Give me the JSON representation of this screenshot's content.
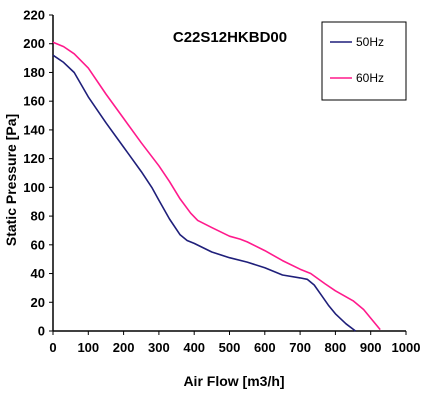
{
  "chart_data": {
    "type": "line",
    "title": "C22S12HKBD00",
    "xlabel": "Air Flow [m3/h]",
    "ylabel": "Static Pressure [Pa]",
    "xlim": [
      0,
      1000
    ],
    "ylim": [
      0,
      220
    ],
    "xticks": [
      0,
      100,
      200,
      300,
      400,
      500,
      600,
      700,
      800,
      900,
      1000
    ],
    "yticks": [
      0,
      20,
      40,
      60,
      80,
      100,
      120,
      140,
      160,
      180,
      200,
      220
    ],
    "grid": false,
    "legend_position": "top-right",
    "series": [
      {
        "name": "50Hz",
        "color": "#1f1f7a",
        "x": [
          0,
          30,
          60,
          100,
          150,
          200,
          250,
          280,
          300,
          330,
          360,
          380,
          400,
          450,
          500,
          550,
          600,
          650,
          700,
          720,
          740,
          760,
          780,
          800,
          830,
          857
        ],
        "y": [
          192,
          187,
          180,
          163,
          145,
          128,
          111,
          100,
          91,
          78,
          67,
          63,
          61,
          55,
          51,
          48,
          44,
          39,
          37,
          36,
          32,
          25,
          18,
          12,
          5,
          0
        ]
      },
      {
        "name": "60Hz",
        "color": "#ff1a8c",
        "x": [
          0,
          30,
          60,
          100,
          150,
          200,
          250,
          300,
          330,
          360,
          390,
          410,
          450,
          500,
          530,
          550,
          600,
          650,
          700,
          730,
          770,
          800,
          850,
          880,
          900,
          927
        ],
        "y": [
          201,
          198,
          193,
          183,
          165,
          148,
          131,
          115,
          104,
          92,
          82,
          77,
          72,
          66,
          64,
          62,
          56,
          49,
          43,
          40,
          33,
          28,
          21,
          15,
          9,
          1
        ]
      }
    ]
  }
}
